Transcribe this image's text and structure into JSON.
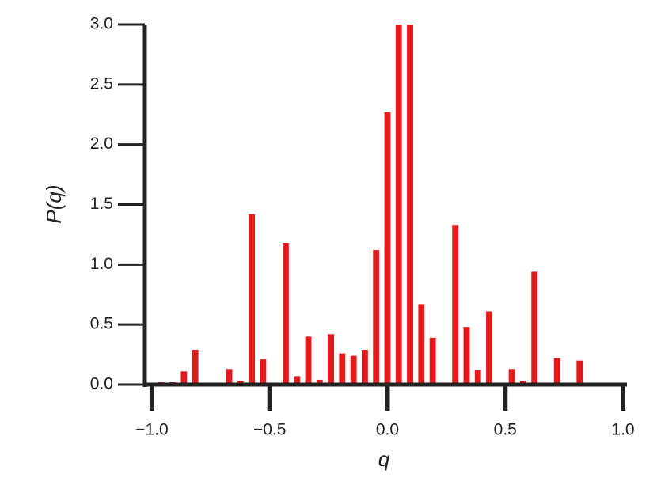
{
  "chart_data": {
    "type": "histogram",
    "xlabel": "q",
    "ylabel": "P(q)",
    "color": "#e3191c",
    "bins": [
      -0.984,
      -0.936,
      -0.888,
      -0.84,
      -0.792,
      -0.744,
      -0.696,
      -0.648,
      -0.6,
      -0.552,
      -0.504,
      -0.456,
      -0.408,
      -0.36,
      -0.312,
      -0.264,
      -0.216,
      -0.168,
      -0.12,
      -0.072,
      -0.024,
      0.024,
      0.072,
      0.12,
      0.168,
      0.216,
      0.264,
      0.312,
      0.36,
      0.408,
      0.456,
      0.504,
      0.552,
      0.6,
      0.648,
      0.696,
      0.744,
      0.792,
      0.84
    ],
    "counts": [
      0.02,
      0.02,
      0.11,
      0.29,
      0,
      0,
      0.13,
      0.03,
      1.42,
      0.21,
      0,
      1.18,
      0.07,
      0.4,
      0.04,
      0.42,
      0.26,
      0.24,
      0.29,
      1.12,
      2.27,
      3.0,
      3.0,
      0.67,
      0.39,
      0,
      1.33,
      0.48,
      0.12,
      0.61,
      0,
      0.13,
      0.03,
      0.94,
      0,
      0.22,
      0,
      0.2
    ],
    "xlim": [
      -1.03,
      1.01
    ],
    "ylim": [
      0,
      3
    ],
    "xticks": [
      {
        "value": -1,
        "label": "−1.0"
      },
      {
        "value": -0.5,
        "label": "−0.5"
      },
      {
        "value": 0,
        "label": "0.0"
      },
      0.5,
      {
        "value": 1,
        "label": "1.0"
      }
    ],
    "yticks": [
      {
        "value": 0,
        "label": "0.0"
      },
      0.5,
      {
        "value": 1,
        "label": "1.0"
      },
      1.5,
      {
        "value": 2,
        "label": "2.0"
      },
      2.5,
      {
        "value": 3,
        "label": "3.0"
      }
    ]
  }
}
